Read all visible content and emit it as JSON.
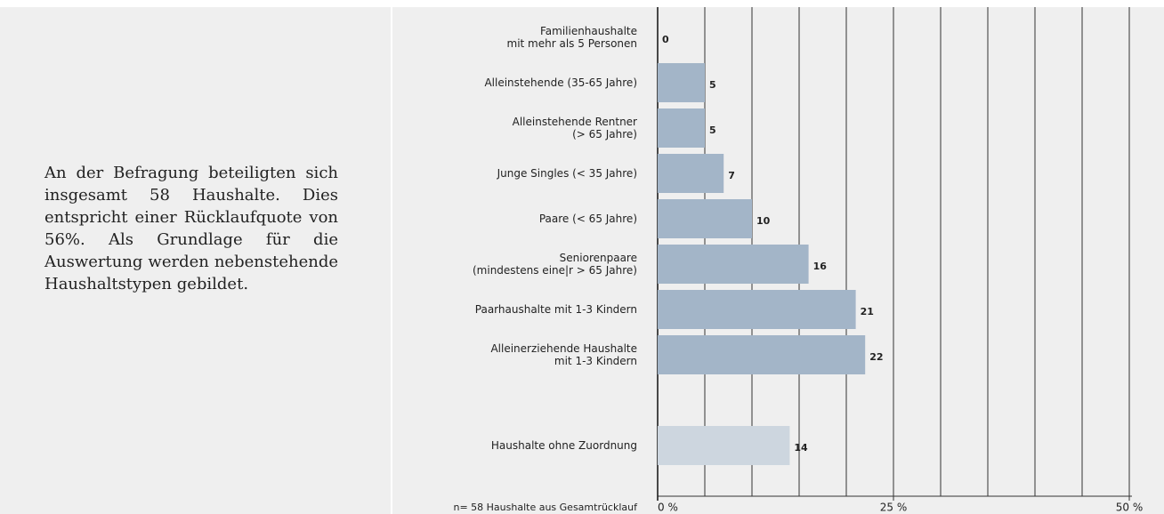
{
  "text": "An der Befragung beteiligten sich insgesamt 58 Haushalte. Dies entspricht einer Rück­laufquote von 56%. Als Grund­lage für die Auswertung werden nebenstehende Haushaltstypen gebildet.",
  "chart_data": {
    "type": "hbar",
    "categories": [
      "Familienhaushalte\nmit mehr als 5 Personen",
      "Alleinstehende (35-65 Jahre)",
      "Alleinstehende Rentner\n(> 65 Jahre)",
      "Junge Singles (< 35 Jahre)",
      "Paare (< 65 Jahre)",
      "Seniorenpaare\n(mindestens eine|r > 65 Jahre)",
      "Paarhaushalte mit 1-3 Kindern",
      "Alleinerziehende Haushalte\nmit 1-3 Kindern",
      null,
      "Haushalte ohne Zuordnung"
    ],
    "values": [
      0,
      5,
      5,
      7,
      10,
      16,
      21,
      22,
      null,
      14
    ],
    "colors": [
      "#a3b5c8",
      "#a3b5c8",
      "#a3b5c8",
      "#a3b5c8",
      "#a3b5c8",
      "#a3b5c8",
      "#a3b5c8",
      "#a3b5c8",
      null,
      "#cdd6df"
    ],
    "xlim": [
      0,
      50
    ],
    "xticks": [
      {
        "value": 0,
        "label": "0 %"
      },
      {
        "value": 25,
        "label": "25 %"
      },
      {
        "value": 50,
        "label": "50 %"
      }
    ],
    "minor_xticks": [
      5,
      10,
      15,
      20,
      30,
      35,
      40,
      45
    ],
    "grid": true,
    "note": "n= 58 Haushalte aus Gesamtrücklauf"
  }
}
